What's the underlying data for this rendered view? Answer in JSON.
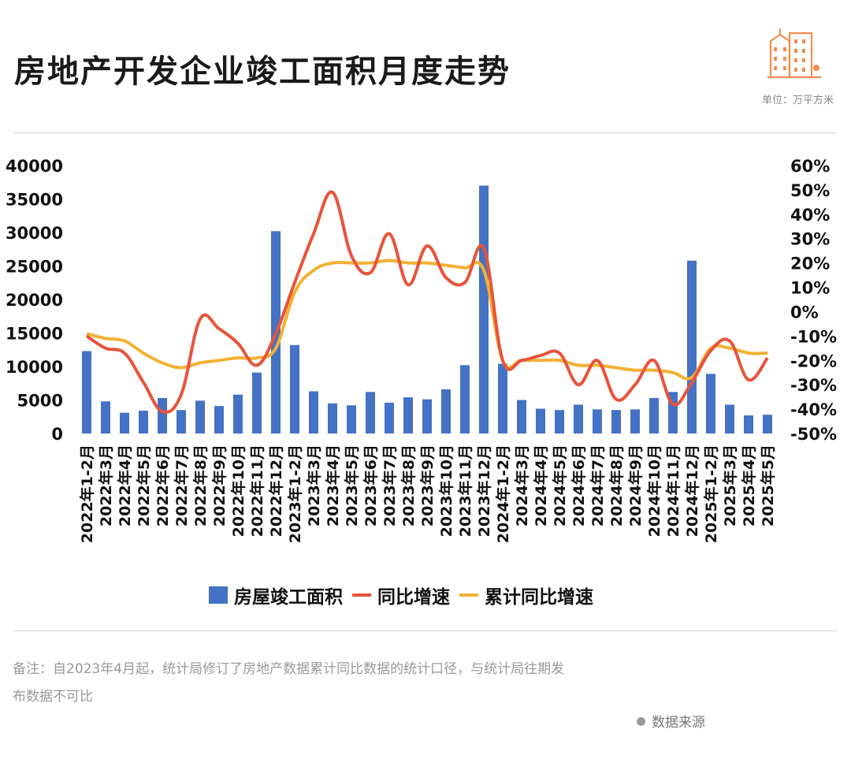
{
  "header": {
    "title": "房地产开发企业竣工面积月度走势",
    "unit": "单位：万平方米"
  },
  "footer": {
    "note_line1": "备注：自2023年4月起，统计局修订了房地产数据累计同比数据的统计口径，与统计局往期发",
    "note_line2": "布数据不可比",
    "source": "数据来源"
  },
  "colors": {
    "bar": "#4472C4",
    "yoy": "#E8543A",
    "cum": "#F2B134",
    "logo": "#F08D4F"
  },
  "icons": [
    "building-logo-icon"
  ],
  "chart_data": {
    "type": "bar",
    "categories": [
      "2022年1-2月",
      "2022年3月",
      "2022年4月",
      "2022年5月",
      "2022年6月",
      "2022年7月",
      "2022年8月",
      "2022年9月",
      "2022年10月",
      "2022年11月",
      "2022年12月",
      "2023年1-2月",
      "2023年3月",
      "2023年4月",
      "2023年5月",
      "2023年6月",
      "2023年7月",
      "2023年8月",
      "2023年9月",
      "2023年10月",
      "2023年11月",
      "2023年12月",
      "2024年1-2月",
      "2024年3月",
      "2024年4月",
      "2024年5月",
      "2024年6月",
      "2024年7月",
      "2024年8月",
      "2024年9月",
      "2024年10月",
      "2024年11月",
      "2024年12月",
      "2025年1-2月",
      "2025年3月",
      "2025年4月",
      "2025年5月"
    ],
    "series": [
      {
        "name": "房屋竣工面积",
        "type": "bar",
        "axis": "left",
        "values": [
          12300,
          4800,
          3100,
          3400,
          5300,
          3500,
          4900,
          4100,
          5800,
          9100,
          30200,
          13200,
          6300,
          4500,
          4200,
          6200,
          4600,
          5400,
          5100,
          6600,
          10200,
          37000,
          10400,
          5000,
          3700,
          3500,
          4300,
          3600,
          3500,
          3600,
          5300,
          6200,
          25800,
          8900,
          4300,
          2700,
          2800
        ]
      },
      {
        "name": "同比增速",
        "type": "line",
        "axis": "right",
        "values": [
          -10,
          -15,
          -17,
          -29,
          -41,
          -34,
          -3,
          -7,
          -13,
          -22,
          -9,
          12,
          32,
          49,
          23,
          16,
          32,
          11,
          27,
          14,
          12,
          26,
          -20,
          -20,
          -18,
          -17,
          -30,
          -20,
          -36,
          -30,
          -20,
          -38,
          -29,
          -16,
          -12,
          -28,
          -19
        ]
      },
      {
        "name": "累计同比增速",
        "type": "line",
        "axis": "right",
        "values": [
          -9,
          -11,
          -12,
          -17,
          -21,
          -23,
          -21,
          -20,
          -19,
          -19,
          -15,
          8,
          17,
          20,
          20,
          20,
          21,
          20,
          20,
          19,
          18,
          17,
          -20,
          -20,
          -20,
          -20,
          -22,
          -22,
          -23,
          -24,
          -24,
          -25,
          -27,
          -15,
          -15,
          -17,
          -17
        ]
      }
    ],
    "y_left": {
      "min": 0,
      "max": 40000,
      "ticks": [
        "0",
        "5000",
        "10000",
        "15000",
        "20000",
        "25000",
        "30000",
        "35000",
        "40000"
      ]
    },
    "y_right": {
      "min": -50,
      "max": 60,
      "ticks": [
        "-50%",
        "-40%",
        "-30%",
        "-20%",
        "-10%",
        "0%",
        "10%",
        "20%",
        "30%",
        "40%",
        "50%",
        "60%"
      ]
    },
    "grid": false,
    "legend_position": "bottom"
  }
}
